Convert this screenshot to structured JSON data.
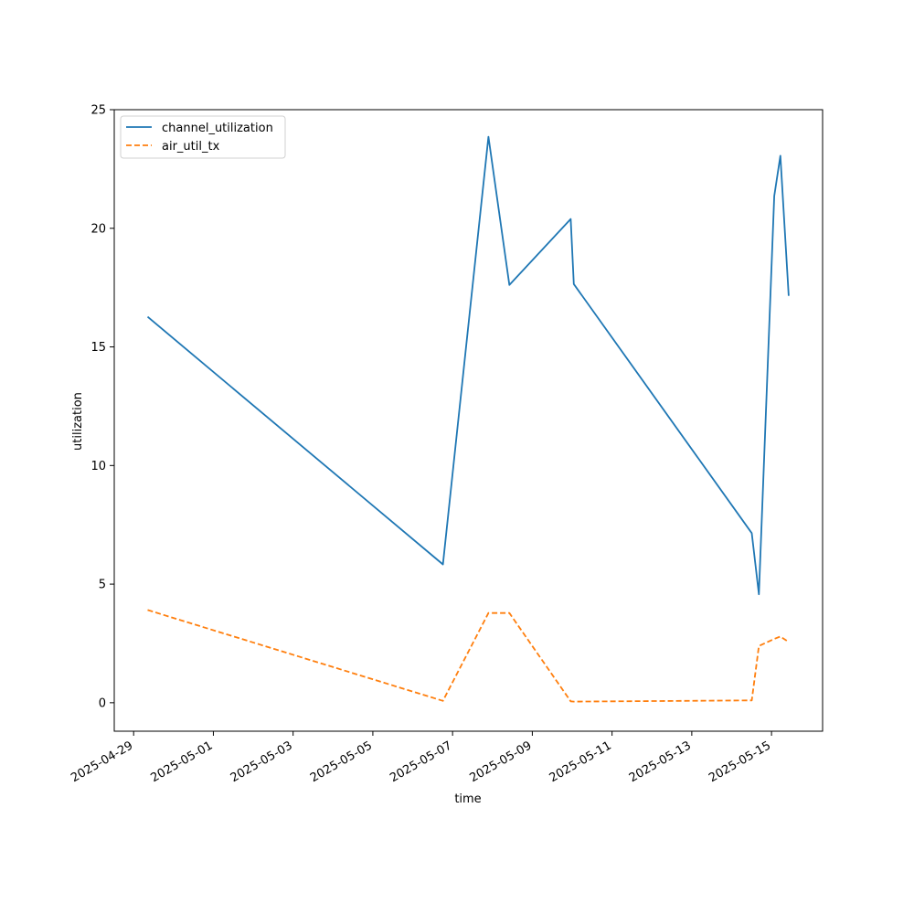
{
  "chart_data": {
    "type": "line",
    "title": "",
    "xlabel": "time",
    "ylabel": "utilization",
    "xlim": [
      "2025-04-28T12:20",
      "2025-05-16T06:45"
    ],
    "ylim": [
      -1.2,
      25
    ],
    "x_ticks": [
      "2025-04-29",
      "2025-05-01",
      "2025-05-03",
      "2025-05-05",
      "2025-05-07",
      "2025-05-09",
      "2025-05-11",
      "2025-05-13",
      "2025-05-15"
    ],
    "y_ticks": [
      0,
      5,
      10,
      15,
      20,
      25
    ],
    "grid": false,
    "legend_position": "upper-left",
    "series": [
      {
        "name": "channel_utilization",
        "color": "#1f77b4",
        "line_style": "solid",
        "points": [
          {
            "x": "2025-04-29T08:25",
            "y": 16.27
          },
          {
            "x": "2025-05-06T18:10",
            "y": 5.83
          },
          {
            "x": "2025-05-07T21:35",
            "y": 23.86
          },
          {
            "x": "2025-05-08T10:10",
            "y": 17.61
          },
          {
            "x": "2025-05-09T23:05",
            "y": 20.39
          },
          {
            "x": "2025-05-10T01:00",
            "y": 17.65
          },
          {
            "x": "2025-05-14T12:05",
            "y": 7.15
          },
          {
            "x": "2025-05-14T16:25",
            "y": 4.57
          },
          {
            "x": "2025-05-15T01:40",
            "y": 21.36
          },
          {
            "x": "2025-05-15T05:20",
            "y": 23.06
          },
          {
            "x": "2025-05-15T10:20",
            "y": 17.15
          }
        ]
      },
      {
        "name": "air_util_tx",
        "color": "#ff7f0e",
        "line_style": "dashed",
        "points": [
          {
            "x": "2025-04-29T08:25",
            "y": 3.91
          },
          {
            "x": "2025-05-06T18:10",
            "y": 0.08
          },
          {
            "x": "2025-05-07T21:35",
            "y": 3.78
          },
          {
            "x": "2025-05-08T10:10",
            "y": 3.78
          },
          {
            "x": "2025-05-09T23:05",
            "y": 0.06
          },
          {
            "x": "2025-05-10T01:00",
            "y": 0.05
          },
          {
            "x": "2025-05-14T12:05",
            "y": 0.1
          },
          {
            "x": "2025-05-14T16:25",
            "y": 2.39
          },
          {
            "x": "2025-05-15T01:40",
            "y": 2.69
          },
          {
            "x": "2025-05-15T05:20",
            "y": 2.79
          },
          {
            "x": "2025-05-15T10:20",
            "y": 2.56
          }
        ]
      }
    ]
  }
}
